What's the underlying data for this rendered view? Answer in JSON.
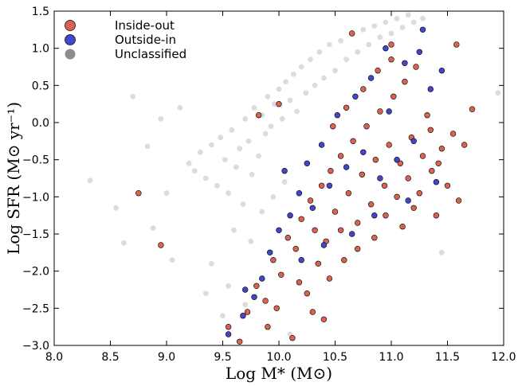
{
  "chart_data": {
    "type": "scatter",
    "title": "",
    "xlabel": "Log M* (M⊙)",
    "ylabel": "Log SFR (M⊙ yr⁻¹)",
    "xlim": [
      8.0,
      12.0
    ],
    "ylim": [
      -3.0,
      1.5
    ],
    "x_ticks": [
      "8.0",
      "8.5",
      "9.0",
      "9.5",
      "10.0",
      "10.5",
      "11.0",
      "11.5",
      "12.0"
    ],
    "y_ticks": [
      "−3.0",
      "−2.5",
      "−2.0",
      "−1.5",
      "−1.0",
      "−0.5",
      "0.0",
      "0.5",
      "1.0",
      "1.5"
    ],
    "legend_position": "top-left",
    "grid": false,
    "series": [
      {
        "name": "Unclassified",
        "color": "#8c8c8c",
        "points": [
          [
            8.32,
            -0.78
          ],
          [
            8.55,
            -1.15
          ],
          [
            8.62,
            -1.62
          ],
          [
            8.7,
            0.35
          ],
          [
            8.83,
            -0.32
          ],
          [
            8.88,
            -1.42
          ],
          [
            9.0,
            -0.95
          ],
          [
            9.05,
            -1.85
          ],
          [
            9.12,
            0.2
          ],
          [
            9.2,
            -0.55
          ],
          [
            9.25,
            -0.65
          ],
          [
            9.3,
            -0.4
          ],
          [
            9.35,
            -0.75
          ],
          [
            9.4,
            -0.3
          ],
          [
            9.45,
            -0.85
          ],
          [
            9.48,
            -0.2
          ],
          [
            9.52,
            -0.5
          ],
          [
            9.55,
            -0.95
          ],
          [
            9.58,
            -0.1
          ],
          [
            9.62,
            -0.6
          ],
          [
            9.65,
            -0.35
          ],
          [
            9.68,
            -1.1
          ],
          [
            9.7,
            0.05
          ],
          [
            9.73,
            -0.25
          ],
          [
            9.76,
            -0.7
          ],
          [
            9.78,
            0.2
          ],
          [
            9.82,
            -0.45
          ],
          [
            9.85,
            0.1
          ],
          [
            9.88,
            -0.15
          ],
          [
            9.9,
            0.35
          ],
          [
            9.93,
            -0.05
          ],
          [
            9.96,
            0.25
          ],
          [
            10.0,
            0.45
          ],
          [
            10.03,
            0.05
          ],
          [
            10.06,
            0.55
          ],
          [
            10.1,
            0.3
          ],
          [
            10.13,
            0.65
          ],
          [
            10.16,
            0.15
          ],
          [
            10.2,
            0.75
          ],
          [
            10.24,
            0.4
          ],
          [
            10.28,
            0.85
          ],
          [
            10.32,
            0.5
          ],
          [
            10.36,
            0.95
          ],
          [
            10.4,
            0.6
          ],
          [
            10.45,
            1.05
          ],
          [
            10.5,
            0.7
          ],
          [
            10.55,
            1.1
          ],
          [
            10.6,
            0.85
          ],
          [
            10.65,
            1.2
          ],
          [
            10.7,
            0.95
          ],
          [
            10.75,
            1.25
          ],
          [
            10.8,
            1.05
          ],
          [
            10.85,
            1.3
          ],
          [
            10.9,
            1.15
          ],
          [
            10.95,
            1.35
          ],
          [
            11.0,
            1.2
          ],
          [
            11.05,
            1.4
          ],
          [
            11.1,
            1.28
          ],
          [
            11.15,
            1.45
          ],
          [
            11.2,
            1.35
          ],
          [
            11.28,
            1.4
          ],
          [
            9.6,
            -1.45
          ],
          [
            9.75,
            -1.6
          ],
          [
            9.85,
            -1.2
          ],
          [
            9.95,
            -1.0
          ],
          [
            10.05,
            -0.8
          ],
          [
            9.55,
            -2.2
          ],
          [
            9.4,
            -1.9
          ],
          [
            9.7,
            -2.45
          ],
          [
            9.5,
            -2.6
          ],
          [
            11.95,
            0.4
          ],
          [
            11.45,
            -1.75
          ],
          [
            10.1,
            -2.85
          ],
          [
            9.35,
            -2.3
          ],
          [
            8.95,
            0.05
          ]
        ]
      },
      {
        "name": "Inside-out",
        "color": "#d9634f",
        "points": [
          [
            8.75,
            -0.95
          ],
          [
            8.95,
            -1.65
          ],
          [
            9.55,
            -2.75
          ],
          [
            9.65,
            -2.95
          ],
          [
            9.72,
            -2.55
          ],
          [
            9.8,
            -2.2
          ],
          [
            9.88,
            -2.4
          ],
          [
            9.95,
            -1.85
          ],
          [
            10.02,
            -2.05
          ],
          [
            10.08,
            -1.55
          ],
          [
            10.15,
            -1.7
          ],
          [
            10.2,
            -1.3
          ],
          [
            10.25,
            -2.3
          ],
          [
            10.28,
            -1.05
          ],
          [
            10.32,
            -1.45
          ],
          [
            10.38,
            -0.85
          ],
          [
            10.42,
            -1.6
          ],
          [
            10.46,
            -0.65
          ],
          [
            10.5,
            -1.2
          ],
          [
            10.55,
            -0.45
          ],
          [
            10.58,
            -1.85
          ],
          [
            10.62,
            -0.95
          ],
          [
            10.66,
            -0.25
          ],
          [
            10.7,
            -1.35
          ],
          [
            10.74,
            -0.7
          ],
          [
            10.78,
            -0.05
          ],
          [
            10.82,
            -1.1
          ],
          [
            10.86,
            -0.5
          ],
          [
            10.9,
            0.15
          ],
          [
            10.94,
            -0.85
          ],
          [
            10.98,
            -0.3
          ],
          [
            11.02,
            0.35
          ],
          [
            11.05,
            -1.0
          ],
          [
            11.08,
            -0.55
          ],
          [
            11.12,
            0.55
          ],
          [
            11.15,
            -0.75
          ],
          [
            11.18,
            -0.2
          ],
          [
            11.22,
            0.75
          ],
          [
            11.25,
            -0.95
          ],
          [
            11.28,
            -0.45
          ],
          [
            11.32,
            0.1
          ],
          [
            11.36,
            -0.65
          ],
          [
            11.4,
            -1.25
          ],
          [
            11.45,
            -0.35
          ],
          [
            11.5,
            -0.85
          ],
          [
            11.55,
            -0.15
          ],
          [
            11.6,
            -1.05
          ],
          [
            11.65,
            -0.3
          ],
          [
            11.72,
            0.18
          ],
          [
            11.58,
            1.05
          ],
          [
            10.0,
            0.25
          ],
          [
            9.82,
            0.1
          ],
          [
            10.65,
            1.2
          ],
          [
            11.0,
            1.05
          ],
          [
            10.4,
            -2.65
          ],
          [
            10.3,
            -2.55
          ],
          [
            10.12,
            -2.9
          ],
          [
            9.9,
            -2.75
          ],
          [
            10.7,
            -1.7
          ],
          [
            11.1,
            -1.4
          ],
          [
            10.85,
            -1.55
          ],
          [
            11.2,
            -1.15
          ],
          [
            10.55,
            -1.45
          ],
          [
            10.95,
            -1.25
          ],
          [
            11.35,
            -0.1
          ],
          [
            10.48,
            -0.05
          ],
          [
            10.6,
            0.2
          ],
          [
            10.75,
            0.45
          ],
          [
            10.88,
            0.7
          ],
          [
            11.0,
            0.85
          ],
          [
            10.35,
            -1.9
          ],
          [
            10.45,
            -2.1
          ],
          [
            10.18,
            -2.15
          ],
          [
            9.98,
            -2.5
          ],
          [
            11.42,
            -0.55
          ]
        ]
      },
      {
        "name": "Outside-in",
        "color": "#4446c9",
        "points": [
          [
            9.55,
            -2.85
          ],
          [
            9.68,
            -2.6
          ],
          [
            9.78,
            -2.35
          ],
          [
            9.85,
            -2.1
          ],
          [
            9.92,
            -1.75
          ],
          [
            10.0,
            -1.45
          ],
          [
            10.05,
            -0.65
          ],
          [
            10.1,
            -1.25
          ],
          [
            10.18,
            -0.95
          ],
          [
            10.25,
            -0.55
          ],
          [
            10.3,
            -1.15
          ],
          [
            10.38,
            -0.3
          ],
          [
            10.45,
            -0.85
          ],
          [
            10.52,
            0.1
          ],
          [
            10.6,
            -0.6
          ],
          [
            10.68,
            0.35
          ],
          [
            10.75,
            -0.4
          ],
          [
            10.82,
            0.6
          ],
          [
            10.9,
            -0.75
          ],
          [
            10.98,
            0.15
          ],
          [
            11.05,
            -0.5
          ],
          [
            11.12,
            0.8
          ],
          [
            11.2,
            -0.25
          ],
          [
            11.28,
            1.25
          ],
          [
            11.35,
            0.45
          ],
          [
            11.45,
            0.7
          ],
          [
            11.4,
            -0.8
          ],
          [
            11.15,
            -1.05
          ],
          [
            10.85,
            -1.25
          ],
          [
            10.65,
            -1.5
          ],
          [
            10.4,
            -1.65
          ],
          [
            10.2,
            -1.85
          ],
          [
            9.7,
            -2.25
          ],
          [
            11.25,
            0.95
          ],
          [
            10.95,
            1.0
          ]
        ]
      }
    ]
  },
  "legend": {
    "items": [
      {
        "label": "Inside-out",
        "color": "#d9634f"
      },
      {
        "label": "Outside-in",
        "color": "#4446c9"
      },
      {
        "label": "Unclassified",
        "color": "#8c8c8c"
      }
    ]
  }
}
